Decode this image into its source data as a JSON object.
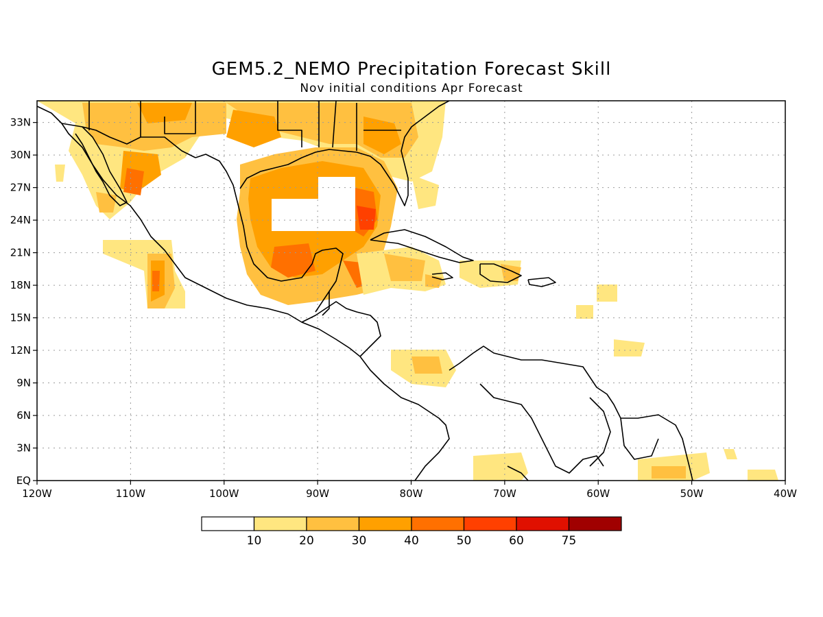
{
  "title": "GEM5.2_NEMO Precipitation Forecast Skill",
  "subtitle": "Nov initial conditions  Apr Forecast",
  "map": {
    "lon_range": [
      -120,
      -40
    ],
    "lat_range": [
      0,
      35
    ],
    "lon_ticks": [
      {
        "v": -120,
        "label": "120W"
      },
      {
        "v": -110,
        "label": "110W"
      },
      {
        "v": -100,
        "label": "100W"
      },
      {
        "v": -90,
        "label": "90W"
      },
      {
        "v": -80,
        "label": "80W"
      },
      {
        "v": -70,
        "label": "70W"
      },
      {
        "v": -60,
        "label": "60W"
      },
      {
        "v": -50,
        "label": "50W"
      },
      {
        "v": -40,
        "label": "40W"
      }
    ],
    "lat_ticks": [
      {
        "v": 0,
        "label": "EQ"
      },
      {
        "v": 3,
        "label": "3N"
      },
      {
        "v": 6,
        "label": "6N"
      },
      {
        "v": 9,
        "label": "9N"
      },
      {
        "v": 12,
        "label": "12N"
      },
      {
        "v": 15,
        "label": "15N"
      },
      {
        "v": 18,
        "label": "18N"
      },
      {
        "v": 21,
        "label": "21N"
      },
      {
        "v": 24,
        "label": "24N"
      },
      {
        "v": 27,
        "label": "27N"
      },
      {
        "v": 30,
        "label": "30N"
      },
      {
        "v": 33,
        "label": "33N"
      }
    ],
    "grid": true
  },
  "colorbar": {
    "colors": [
      "#ffffff",
      "#ffe680",
      "#ffc040",
      "#ffa000",
      "#ff7000",
      "#ff4000",
      "#e01000",
      "#a00000"
    ],
    "labels": [
      "10",
      "20",
      "30",
      "40",
      "50",
      "60",
      "75"
    ]
  }
}
